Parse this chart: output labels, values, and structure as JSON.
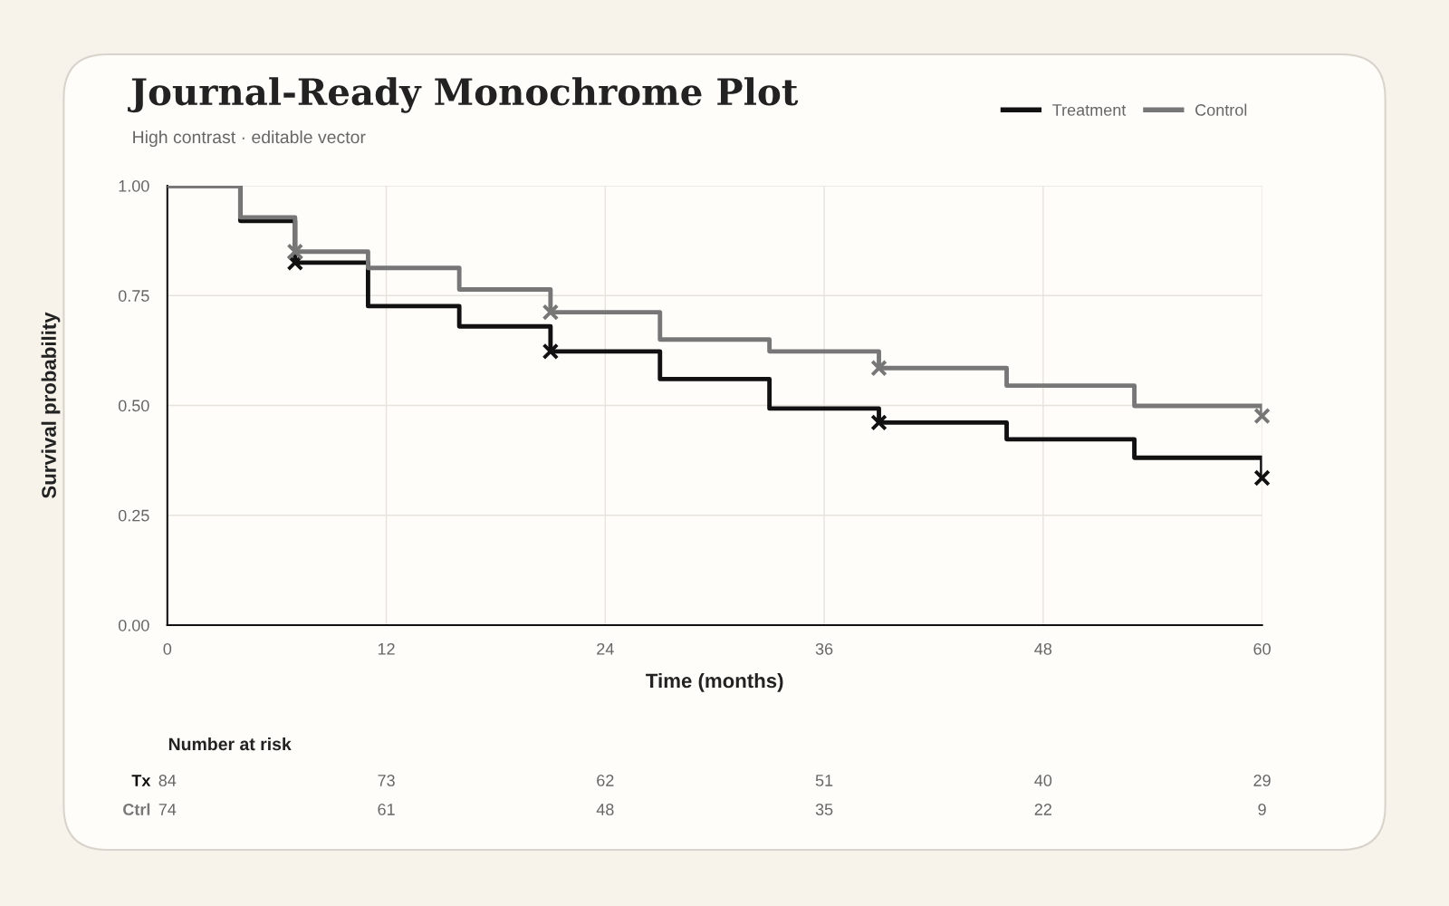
{
  "chart_data": {
    "type": "step",
    "title": "Journal-Ready Monochrome Plot",
    "subtitle": "High contrast · editable vector",
    "xlabel": "Time (months)",
    "ylabel": "Survival probability",
    "xlim": [
      0,
      60
    ],
    "xticks": [
      0,
      12,
      24,
      36,
      48,
      60
    ],
    "ylim": [
      0,
      1
    ],
    "yticks": [
      {
        "value": 0,
        "label": "0.00"
      },
      {
        "value": 0.25,
        "label": "0.25"
      },
      {
        "value": 0.5,
        "label": "0.50"
      },
      {
        "value": 0.75,
        "label": "0.75"
      },
      {
        "value": 1,
        "label": "1.00"
      }
    ],
    "grid": true,
    "legend": "top right",
    "line_style": "solid",
    "series": [
      {
        "name": "Treatment",
        "color": "#111111",
        "marker": "none",
        "x": [
          0,
          4,
          7,
          11,
          16,
          21,
          27,
          33,
          39,
          46,
          53,
          60
        ],
        "values": [
          1.0,
          0.92,
          0.825,
          0.726,
          0.68,
          0.623,
          0.56,
          0.493,
          0.461,
          0.423,
          0.381,
          0.335
        ]
      },
      {
        "name": "Control",
        "color": "#777777",
        "marker": "none",
        "x": [
          0,
          4,
          7,
          11,
          16,
          21,
          27,
          33,
          39,
          46,
          53,
          60
        ],
        "values": [
          1.0,
          0.928,
          0.85,
          0.813,
          0.764,
          0.712,
          0.65,
          0.623,
          0.585,
          0.545,
          0.499,
          0.476
        ]
      },
      {
        "type": "scatter",
        "color": "#111111",
        "marker": "cross",
        "x": [
          7,
          21,
          39,
          60
        ],
        "values": [
          0.825,
          0.623,
          0.461,
          0.335
        ]
      },
      {
        "type": "scatter",
        "color": "#777777",
        "marker": "cross",
        "x": [
          7,
          21,
          39,
          60
        ],
        "values": [
          0.85,
          0.712,
          0.585,
          0.476
        ]
      }
    ],
    "annotations": [
      "Number at risk",
      "Tx",
      "84",
      "73",
      "62",
      "51",
      "40",
      "29",
      "Ctrl",
      "74",
      "61",
      "48",
      "35",
      "22",
      "9"
    ]
  }
}
